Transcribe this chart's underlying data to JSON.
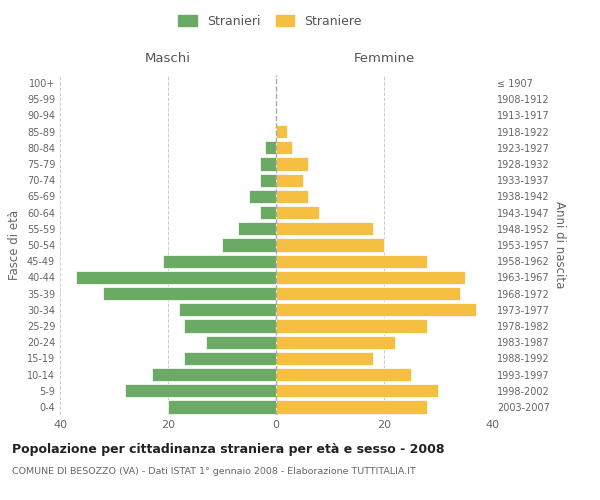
{
  "age_groups": [
    "0-4",
    "5-9",
    "10-14",
    "15-19",
    "20-24",
    "25-29",
    "30-34",
    "35-39",
    "40-44",
    "45-49",
    "50-54",
    "55-59",
    "60-64",
    "65-69",
    "70-74",
    "75-79",
    "80-84",
    "85-89",
    "90-94",
    "95-99",
    "100+"
  ],
  "birth_years": [
    "2003-2007",
    "1998-2002",
    "1993-1997",
    "1988-1992",
    "1983-1987",
    "1978-1982",
    "1973-1977",
    "1968-1972",
    "1963-1967",
    "1958-1962",
    "1953-1957",
    "1948-1952",
    "1943-1947",
    "1938-1942",
    "1933-1937",
    "1928-1932",
    "1923-1927",
    "1918-1922",
    "1913-1917",
    "1908-1912",
    "≤ 1907"
  ],
  "maschi": [
    20,
    28,
    23,
    17,
    13,
    17,
    18,
    32,
    37,
    21,
    10,
    7,
    3,
    5,
    3,
    3,
    2,
    0,
    0,
    0,
    0
  ],
  "femmine": [
    28,
    30,
    25,
    18,
    22,
    28,
    37,
    34,
    35,
    28,
    20,
    18,
    8,
    6,
    5,
    6,
    3,
    2,
    0,
    0,
    0
  ],
  "male_color": "#6aaa64",
  "female_color": "#f5bf42",
  "background_color": "#ffffff",
  "grid_color": "#cccccc",
  "title": "Popolazione per cittadinanza straniera per età e sesso - 2008",
  "subtitle": "COMUNE DI BESOZZO (VA) - Dati ISTAT 1° gennaio 2008 - Elaborazione TUTTITALIA.IT",
  "ylabel_left": "Fasce di età",
  "ylabel_right": "Anni di nascita",
  "xlabel_left": "Maschi",
  "xlabel_right": "Femmine",
  "legend_male": "Stranieri",
  "legend_female": "Straniere",
  "xlim": 40,
  "figsize": [
    6.0,
    5.0
  ],
  "dpi": 100
}
